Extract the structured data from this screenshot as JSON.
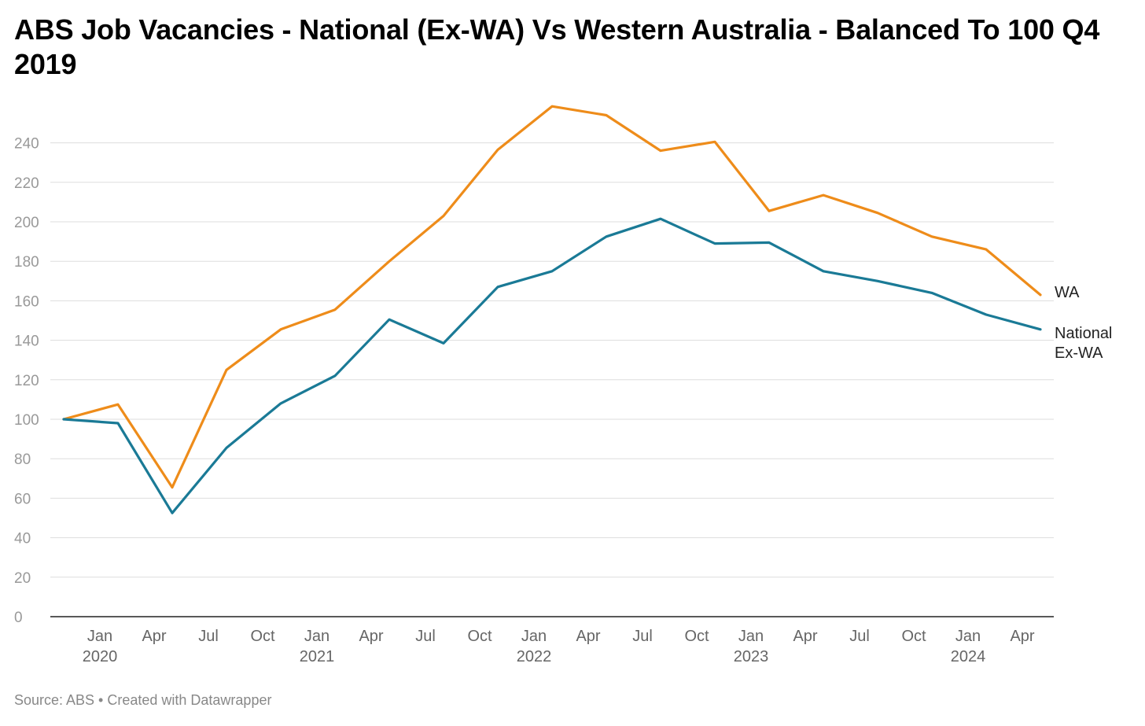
{
  "title": "ABS Job Vacancies - National (Ex-WA) Vs Western Australia - Balanced To 100 Q4 2019",
  "footer": {
    "source_text": "Source: ABS • Created with Datawrapper"
  },
  "colors": {
    "wa": "#ee8c1a",
    "national": "#1a7a96",
    "grid": "#dddddd",
    "axis": "#222222"
  },
  "chart_data": {
    "type": "line",
    "title": "ABS Job Vacancies - National (Ex-WA) Vs Western Australia - Balanced To 100 Q4 2019",
    "xlabel": "",
    "ylabel": "",
    "ylim": [
      0,
      240
    ],
    "yticks": [
      0,
      20,
      40,
      60,
      80,
      100,
      120,
      140,
      160,
      180,
      200,
      220,
      240
    ],
    "x_ticks": [
      {
        "month": "Jan",
        "year": "2020"
      },
      {
        "month": "Apr",
        "year": ""
      },
      {
        "month": "Jul",
        "year": ""
      },
      {
        "month": "Oct",
        "year": ""
      },
      {
        "month": "Jan",
        "year": "2021"
      },
      {
        "month": "Apr",
        "year": ""
      },
      {
        "month": "Jul",
        "year": ""
      },
      {
        "month": "Oct",
        "year": ""
      },
      {
        "month": "Jan",
        "year": "2022"
      },
      {
        "month": "Apr",
        "year": ""
      },
      {
        "month": "Jul",
        "year": ""
      },
      {
        "month": "Oct",
        "year": ""
      },
      {
        "month": "Jan",
        "year": "2023"
      },
      {
        "month": "Apr",
        "year": ""
      },
      {
        "month": "Jul",
        "year": ""
      },
      {
        "month": "Oct",
        "year": ""
      },
      {
        "month": "Jan",
        "year": "2024"
      },
      {
        "month": "Apr",
        "year": ""
      }
    ],
    "x": [
      "2019-11",
      "2020-02",
      "2020-05",
      "2020-08",
      "2020-11",
      "2021-02",
      "2021-05",
      "2021-08",
      "2021-11",
      "2022-02",
      "2022-05",
      "2022-08",
      "2022-11",
      "2023-02",
      "2023-05",
      "2023-08",
      "2023-11",
      "2024-02",
      "2024-05"
    ],
    "series": [
      {
        "name": "WA",
        "key": "wa",
        "end_label": [
          "WA"
        ],
        "values": [
          100,
          107.5,
          65.5,
          125,
          145.5,
          155.5,
          180,
          203,
          236.5,
          258.5,
          254,
          236,
          240.5,
          205.5,
          213.5,
          204.5,
          192.5,
          186,
          163
        ]
      },
      {
        "name": "National Ex-WA",
        "key": "national",
        "end_label": [
          "National",
          "Ex-WA"
        ],
        "values": [
          100,
          98,
          52.5,
          85.5,
          108,
          122,
          150.5,
          138.5,
          167,
          175,
          192.5,
          201.5,
          189,
          189.5,
          175,
          170,
          164,
          153,
          145.5
        ]
      }
    ],
    "grid": true,
    "legend": "direct labels at line ends"
  }
}
